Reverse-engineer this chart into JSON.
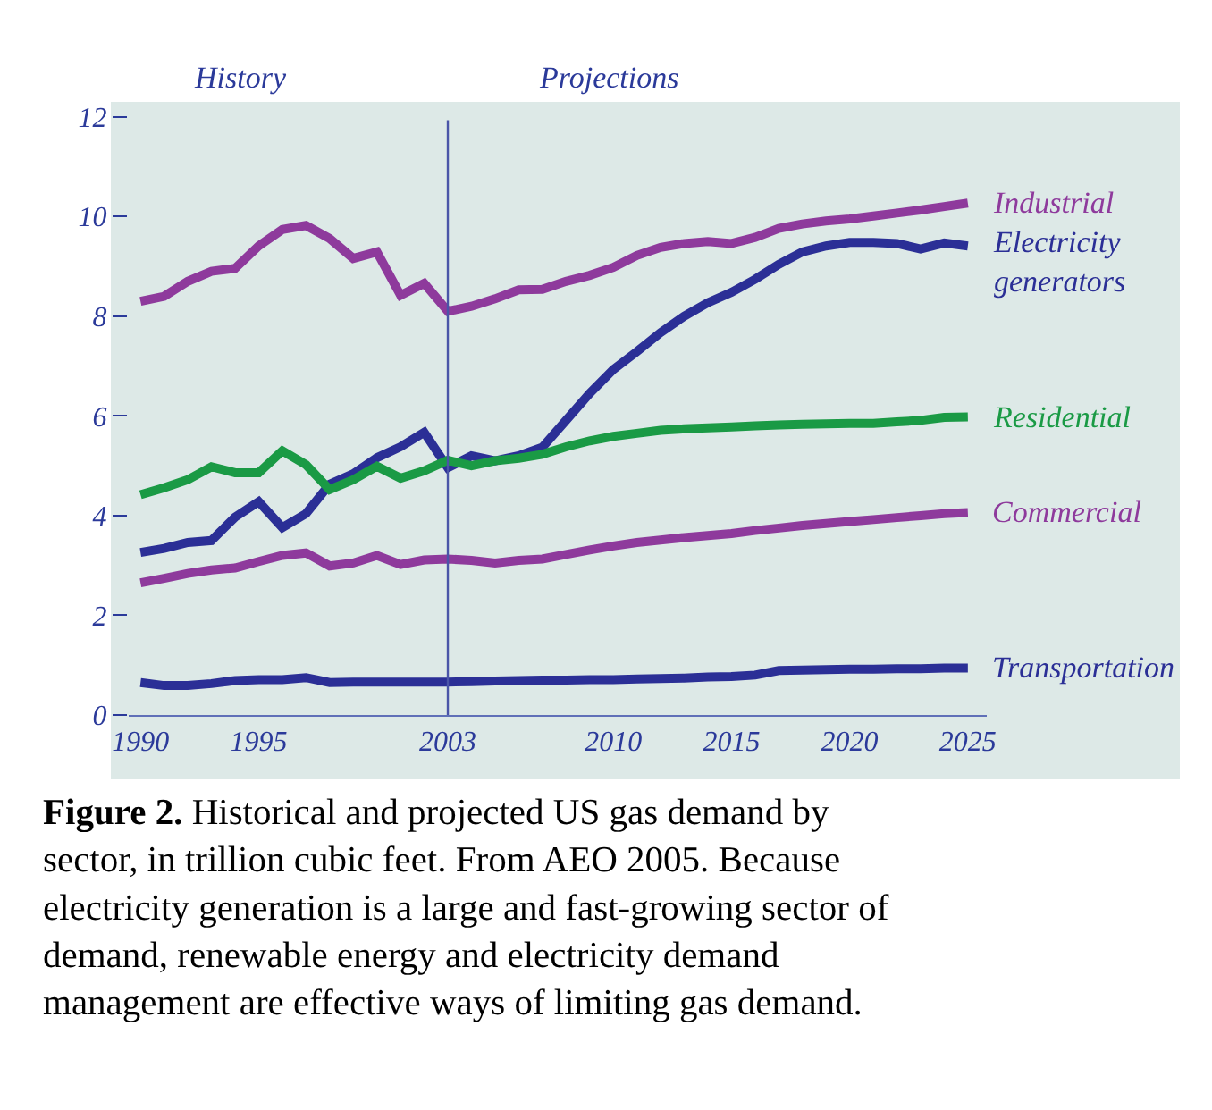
{
  "chart_data": {
    "type": "line",
    "x": [
      1990,
      1991,
      1992,
      1993,
      1994,
      1995,
      1996,
      1997,
      1998,
      1999,
      2000,
      2001,
      2002,
      2003,
      2004,
      2005,
      2006,
      2007,
      2008,
      2009,
      2010,
      2011,
      2012,
      2013,
      2014,
      2015,
      2016,
      2017,
      2018,
      2019,
      2020,
      2021,
      2022,
      2023,
      2024,
      2025
    ],
    "series": [
      {
        "name": "Industrial",
        "color": "#8e3a9c",
        "values": [
          8.3,
          8.4,
          8.7,
          8.9,
          8.96,
          9.41,
          9.74,
          9.82,
          9.56,
          9.16,
          9.29,
          8.42,
          8.66,
          8.1,
          8.2,
          8.35,
          8.53,
          8.54,
          8.7,
          8.82,
          8.98,
          9.22,
          9.38,
          9.46,
          9.5,
          9.46,
          9.58,
          9.76,
          9.85,
          9.91,
          9.95,
          10.01,
          10.07,
          10.13,
          10.2,
          10.27
        ]
      },
      {
        "name": "Electricity\ngenerators",
        "color": "#2b2f96",
        "values": [
          3.26,
          3.34,
          3.46,
          3.5,
          3.97,
          4.28,
          3.76,
          4.04,
          4.63,
          4.84,
          5.16,
          5.38,
          5.67,
          4.96,
          5.2,
          5.1,
          5.2,
          5.37,
          5.91,
          6.45,
          6.93,
          7.29,
          7.67,
          8.0,
          8.27,
          8.48,
          8.74,
          9.04,
          9.29,
          9.41,
          9.48,
          9.48,
          9.46,
          9.35,
          9.47,
          9.41
        ]
      },
      {
        "name": "Residential",
        "color": "#1a9a45",
        "values": [
          4.42,
          4.56,
          4.72,
          4.98,
          4.86,
          4.86,
          5.3,
          5.02,
          4.52,
          4.72,
          4.99,
          4.75,
          4.9,
          5.11,
          5.0,
          5.1,
          5.15,
          5.23,
          5.38,
          5.5,
          5.59,
          5.65,
          5.71,
          5.74,
          5.76,
          5.78,
          5.8,
          5.82,
          5.83,
          5.84,
          5.85,
          5.85,
          5.88,
          5.91,
          5.97,
          5.98
        ]
      },
      {
        "name": "Commercial",
        "color": "#8e3a9c",
        "values": [
          2.65,
          2.74,
          2.84,
          2.91,
          2.95,
          3.08,
          3.2,
          3.25,
          2.99,
          3.05,
          3.2,
          3.02,
          3.11,
          3.13,
          3.1,
          3.05,
          3.1,
          3.13,
          3.22,
          3.31,
          3.39,
          3.46,
          3.51,
          3.56,
          3.6,
          3.64,
          3.7,
          3.75,
          3.8,
          3.84,
          3.88,
          3.92,
          3.96,
          4.0,
          4.04,
          4.06
        ]
      },
      {
        "name": "Transportation",
        "color": "#2b2f96",
        "values": [
          0.65,
          0.59,
          0.59,
          0.63,
          0.69,
          0.71,
          0.71,
          0.75,
          0.65,
          0.66,
          0.66,
          0.66,
          0.66,
          0.66,
          0.67,
          0.68,
          0.69,
          0.7,
          0.7,
          0.71,
          0.71,
          0.72,
          0.73,
          0.74,
          0.76,
          0.77,
          0.8,
          0.89,
          0.9,
          0.91,
          0.92,
          0.92,
          0.93,
          0.93,
          0.94,
          0.94
        ]
      }
    ],
    "xlim": [
      1989.5,
      2025.8
    ],
    "ylim": [
      0,
      12.3
    ],
    "xticks": [
      1990,
      1995,
      2003,
      2010,
      2015,
      2020,
      2025
    ],
    "yticks": [
      0,
      2,
      4,
      6,
      8,
      10,
      12
    ],
    "ref_lines": [
      {
        "axis": "x",
        "value": 2003,
        "color": "#4a55a8"
      }
    ],
    "annotations": [
      "History",
      "Projections",
      "Figure 2. Historical and projected US gas demand by\nsector, in trillion cubic feet. From AEO 2005. Because\nelectricity generation is a large and fast-growing sector of\ndemand, renewable energy and electricity demand\nmanagement are effective ways of limiting gas demand."
    ],
    "grid": false,
    "legend": false,
    "marker": "none",
    "line_style": "solid"
  }
}
